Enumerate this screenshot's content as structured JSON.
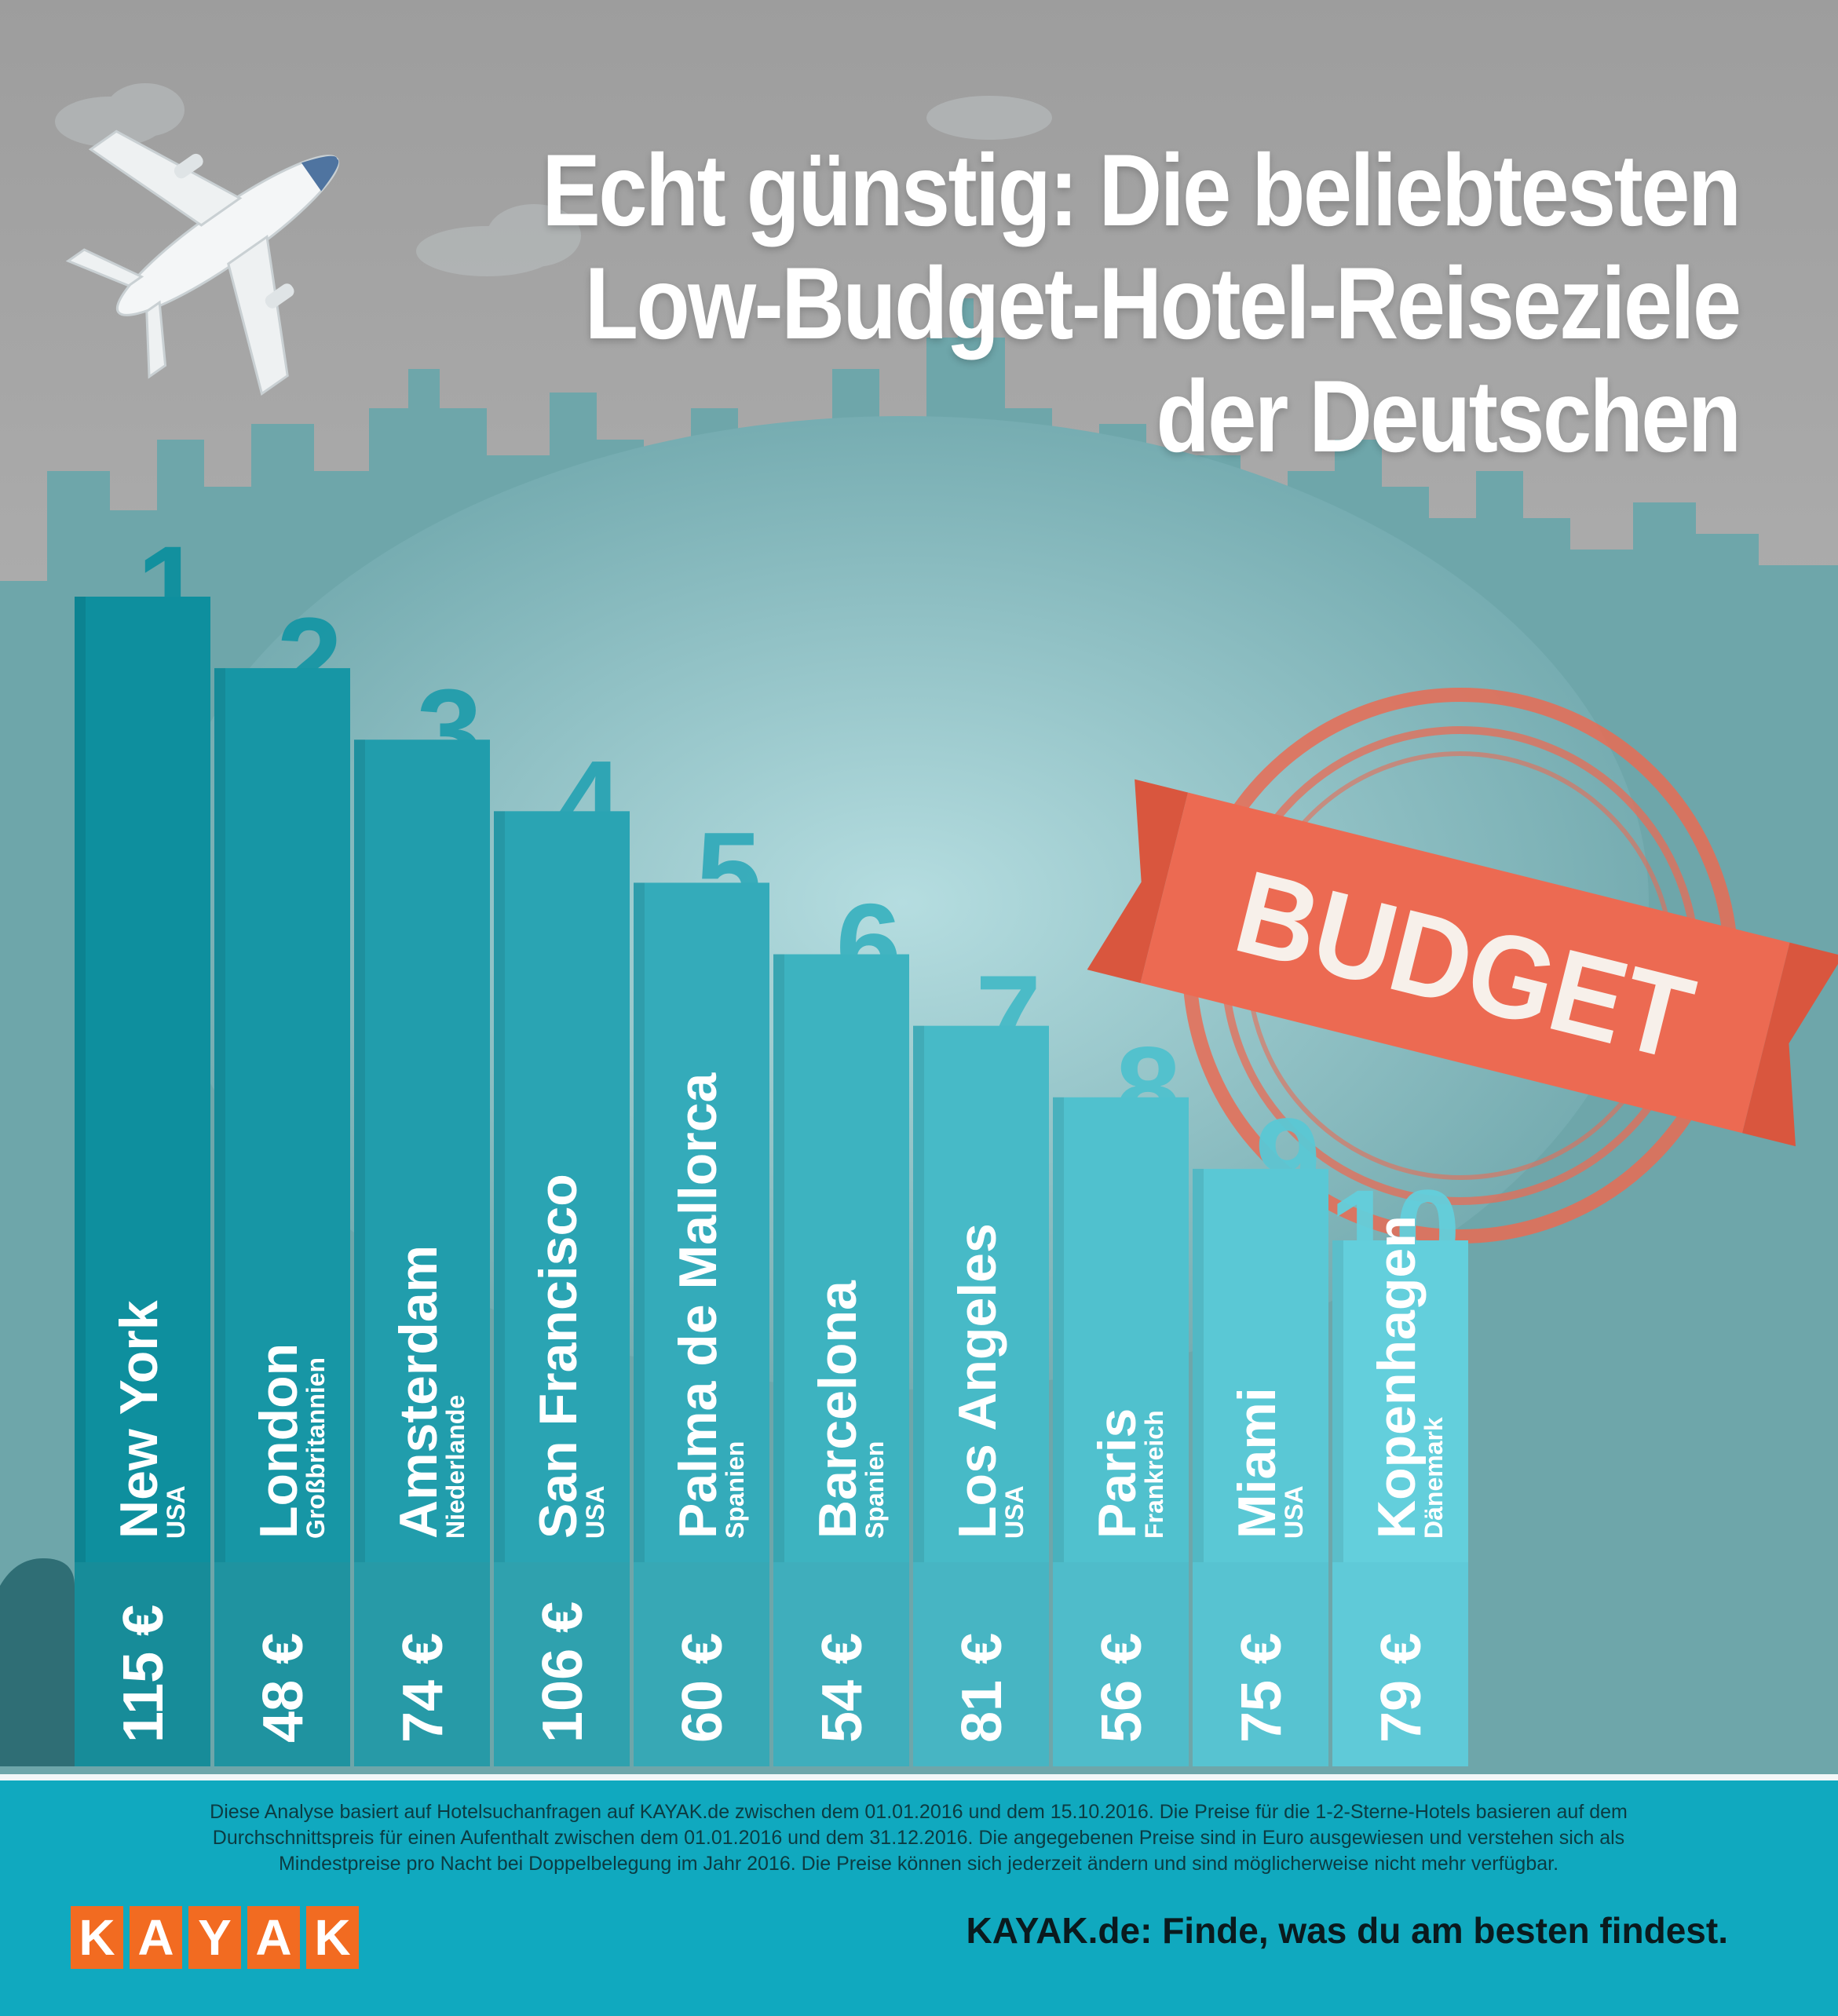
{
  "title": {
    "line1": "Echt günstig: Die beliebtesten",
    "line2": "Low-Budget-Hotel-Reiseziele",
    "line3": "der Deutschen"
  },
  "stamp": {
    "text": "BUDGET"
  },
  "chart_data": {
    "type": "bar",
    "title": "Echt günstig: Die beliebtesten Low-Budget-Hotel-Reiseziele der Deutschen",
    "ranks": [
      "1",
      "2",
      "3",
      "4",
      "5",
      "6",
      "7",
      "8",
      "9",
      "10"
    ],
    "cities": [
      "New York",
      "London",
      "Amsterdam",
      "San Francisco",
      "Palma de Mallorca",
      "Barcelona",
      "Los Angeles",
      "Paris",
      "Miami",
      "Kopenhagen"
    ],
    "countries": [
      "USA",
      "Großbritannien",
      "Niederlande",
      "USA",
      "Spanien",
      "Spanien",
      "USA",
      "Frankreich",
      "USA",
      "Dänemark"
    ],
    "values": [
      115,
      48,
      74,
      106,
      60,
      54,
      81,
      56,
      75,
      79
    ],
    "price_labels": [
      "115 €",
      "48 €",
      "74 €",
      "106 €",
      "60 €",
      "54 €",
      "81 €",
      "56 €",
      "75 €",
      "79 €"
    ],
    "unit": "€"
  },
  "footer": {
    "note_line1": "Diese Analyse basiert auf Hotelsuchanfragen auf KAYAK.de zwischen dem 01.01.2016 und dem 15.10.2016. Die Preise für die 1-2-Sterne-Hotels basieren auf dem",
    "note_line2": "Durchschnittspreis für einen Aufenthalt zwischen dem 01.01.2016 und dem 31.12.2016. Die angegebenen Preise sind in Euro ausgewiesen und verstehen sich als",
    "note_line3": "Mindestpreise pro Nacht bei Doppelbelegung im Jahr 2016. Die Preise können sich jederzeit ändern und sind möglicherweise nicht mehr verfügbar.",
    "logo_letters": [
      "K",
      "A",
      "Y",
      "A",
      "K"
    ],
    "slogan": "KAYAK.de: Finde, was du am besten findest."
  },
  "colors": {
    "sky": "#a8a8a8",
    "skyline": "#6aa5a9",
    "bar_dark": "#0e8f9e",
    "bar_light": "#63cfdc",
    "stamp": "#ec6a52",
    "footer": "#10a9bf",
    "logo": "#f26b21"
  }
}
